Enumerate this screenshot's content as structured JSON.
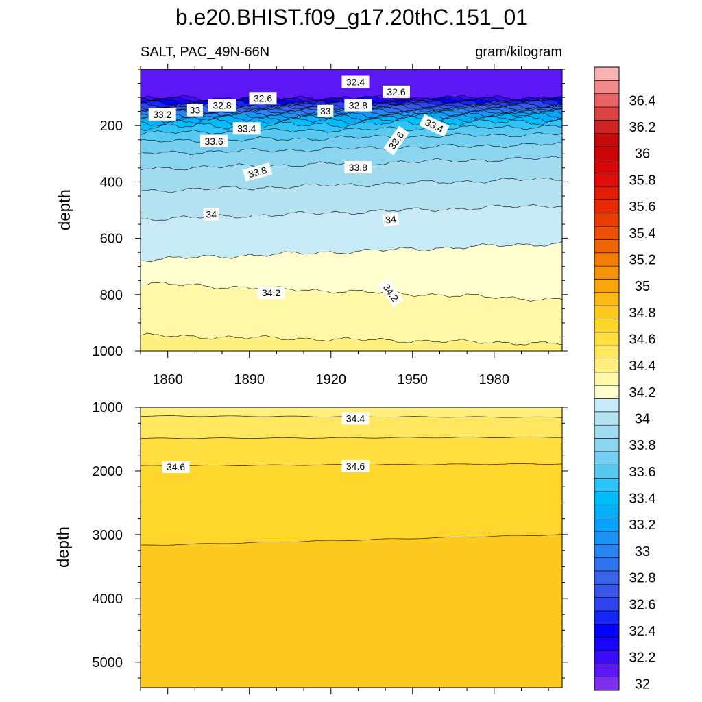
{
  "chart_data": {
    "type": "contour",
    "title": "b.e20.BHIST.f09_g17.20thC.151_01",
    "left_string": "SALT, PAC_49N-66N",
    "right_string": "gram/kilogram",
    "colorbar": {
      "levels": [
        32,
        32.1,
        32.2,
        32.3,
        32.4,
        32.5,
        32.6,
        32.7,
        32.8,
        32.9,
        33,
        33.1,
        33.2,
        33.3,
        33.4,
        33.5,
        33.6,
        33.7,
        33.8,
        33.9,
        34,
        34.1,
        34.2,
        34.3,
        34.4,
        34.5,
        34.6,
        34.7,
        34.8,
        34.9,
        35,
        35.1,
        35.2,
        35.3,
        35.4,
        35.5,
        35.6,
        35.7,
        35.8,
        35.9,
        36,
        36.1,
        36.2,
        36.3,
        36.4,
        36.5
      ],
      "colors": [
        "#7f2ff0",
        "#5b18f5",
        "#3a0cf8",
        "#1a05fa",
        "#0000ff",
        "#1626f5",
        "#2e44ec",
        "#3857e6",
        "#3a64ea",
        "#2f73ee",
        "#2a84f2",
        "#1a93f5",
        "#0aa2f8",
        "#00b0fa",
        "#00bdfb",
        "#2fc4f7",
        "#58caf2",
        "#74cff0",
        "#8cd5ef",
        "#a2dcf0",
        "#b5e3f2",
        "#c7ebf6",
        "#ffffcf",
        "#fff8a8",
        "#fff080",
        "#ffe860",
        "#ffdf40",
        "#fed52c",
        "#fdca20",
        "#fcb814",
        "#f9a60c",
        "#f79308",
        "#f47d06",
        "#f06505",
        "#ec5004",
        "#e83c03",
        "#e62a03",
        "#e41b03",
        "#e00c0c",
        "#d80808",
        "#cc0606",
        "#c40a0a",
        "#cf2424",
        "#dc4444",
        "#e86464",
        "#f08c8c",
        "#f9b2b2"
      ],
      "labels": [
        "32",
        "32.2",
        "32.4",
        "32.6",
        "32.8",
        "33",
        "33.2",
        "33.4",
        "33.6",
        "33.8",
        "34",
        "34.2",
        "34.4",
        "34.6",
        "34.8",
        "35",
        "35.2",
        "35.4",
        "35.6",
        "35.8",
        "36",
        "36.2",
        "36.4"
      ]
    },
    "top_panel": {
      "xlabel": "",
      "ylabel": "depth",
      "xlim": [
        1850,
        2005
      ],
      "ylim": [
        1000,
        0
      ],
      "xticks": [
        1860,
        1890,
        1920,
        1950,
        1980
      ],
      "yticks": [
        200,
        400,
        600,
        800,
        1000
      ],
      "contour_lines": [
        {
          "level": 32.1,
          "depth": 104,
          "slope": -1
        },
        {
          "level": 32.2,
          "depth": 108,
          "slope": -2
        },
        {
          "level": 32.3,
          "depth": 114,
          "slope": -3
        },
        {
          "level": 32.4,
          "depth": 120,
          "slope": -4
        },
        {
          "level": 32.5,
          "depth": 127,
          "slope": -5
        },
        {
          "level": 32.6,
          "depth": 134,
          "slope": -5
        },
        {
          "level": 32.7,
          "depth": 141,
          "slope": -6
        },
        {
          "level": 32.8,
          "depth": 148,
          "slope": -7
        },
        {
          "level": 32.9,
          "depth": 155,
          "slope": -8
        },
        {
          "level": 33.0,
          "depth": 162,
          "slope": -9
        },
        {
          "level": 33.1,
          "depth": 170,
          "slope": -10
        },
        {
          "level": 33.2,
          "depth": 178,
          "slope": -11
        },
        {
          "level": 33.3,
          "depth": 190,
          "slope": -12
        },
        {
          "level": 33.4,
          "depth": 205,
          "slope": -14
        },
        {
          "level": 33.5,
          "depth": 226,
          "slope": -16
        },
        {
          "level": 33.6,
          "depth": 257,
          "slope": -19
        },
        {
          "level": 33.7,
          "depth": 298,
          "slope": -22
        },
        {
          "level": 33.8,
          "depth": 353,
          "slope": -26
        },
        {
          "level": 33.9,
          "depth": 432,
          "slope": -30
        },
        {
          "level": 34.0,
          "depth": 532,
          "slope": -34
        },
        {
          "level": 34.1,
          "depth": 676,
          "slope": -40
        },
        {
          "level": 34.2,
          "depth": 760,
          "slope": 40
        },
        {
          "level": 34.3,
          "depth": 945,
          "slope": 20
        }
      ],
      "labels": [
        {
          "text": "32.4",
          "x": 1929,
          "y": 45,
          "angle": 0
        },
        {
          "text": "32.6",
          "x": 1944,
          "y": 80,
          "angle": 0
        },
        {
          "text": "32.6",
          "x": 1895,
          "y": 103,
          "angle": 0
        },
        {
          "text": "32.8",
          "x": 1880,
          "y": 128,
          "angle": 0
        },
        {
          "text": "32.8",
          "x": 1930,
          "y": 128,
          "angle": 0
        },
        {
          "text": "33",
          "x": 1870,
          "y": 145,
          "angle": 0
        },
        {
          "text": "33",
          "x": 1918,
          "y": 148,
          "angle": 0
        },
        {
          "text": "33.2",
          "x": 1858,
          "y": 160,
          "angle": 0
        },
        {
          "text": "33.4",
          "x": 1889,
          "y": 210,
          "angle": 0
        },
        {
          "text": "33.4",
          "x": 1958,
          "y": 200,
          "angle": 25
        },
        {
          "text": "33.6",
          "x": 1877,
          "y": 255,
          "angle": 0
        },
        {
          "text": "33.6",
          "x": 1944,
          "y": 253,
          "angle": -55
        },
        {
          "text": "33.8",
          "x": 1893,
          "y": 365,
          "angle": -15
        },
        {
          "text": "33.8",
          "x": 1930,
          "y": 348,
          "angle": 0
        },
        {
          "text": "34",
          "x": 1876,
          "y": 515,
          "angle": 0
        },
        {
          "text": "34",
          "x": 1942,
          "y": 533,
          "angle": -8
        },
        {
          "text": "34.2",
          "x": 1898,
          "y": 793,
          "angle": 0
        },
        {
          "text": "34.2",
          "x": 1942,
          "y": 793,
          "angle": 55
        }
      ]
    },
    "bottom_panel": {
      "xlabel": "",
      "ylabel": "depth",
      "xlim": [
        1850,
        2005
      ],
      "ylim": [
        5400,
        1000
      ],
      "yticks": [
        1000,
        2000,
        3000,
        4000,
        5000
      ],
      "contour_lines": [
        {
          "level": 34.4,
          "depth": 1140,
          "end_depth": 1160
        },
        {
          "level": 34.5,
          "depth": 1490,
          "end_depth": 1470
        },
        {
          "level": 34.6,
          "depth": 1920,
          "end_depth": 1890
        },
        {
          "level": 34.7,
          "depth": 3170,
          "end_depth": 3000
        }
      ],
      "labels": [
        {
          "text": "34.4",
          "x": 1929,
          "y": 1175,
          "angle": 0
        },
        {
          "text": "34.6",
          "x": 1863,
          "y": 1935,
          "angle": 0
        },
        {
          "text": "34.6",
          "x": 1929,
          "y": 1925,
          "angle": 0
        }
      ]
    }
  }
}
